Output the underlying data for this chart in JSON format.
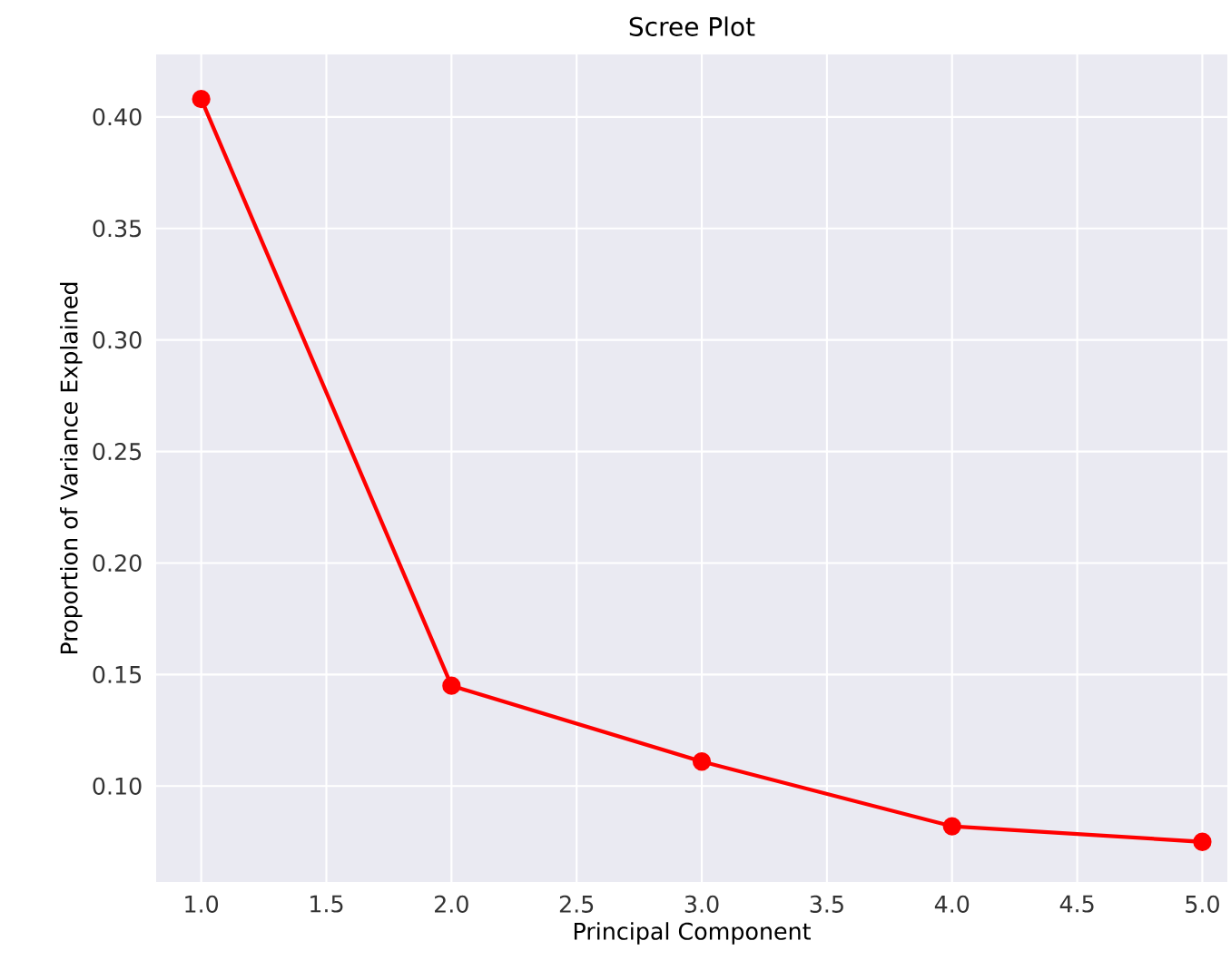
{
  "chart_data": {
    "type": "line",
    "title": "Scree Plot",
    "xlabel": "Principal Component",
    "ylabel": "Proportion of Variance Explained",
    "x": [
      1,
      2,
      3,
      4,
      5
    ],
    "series": [
      {
        "color": "#ff0000",
        "values": [
          0.408,
          0.145,
          0.111,
          0.082,
          0.075
        ]
      }
    ],
    "xlim": [
      0.82,
      5.1
    ],
    "ylim": [
      0.057,
      0.428
    ],
    "xticks": [
      {
        "value": 1,
        "label": "1.0"
      },
      {
        "value": 1.5,
        "label": "1.5"
      },
      {
        "value": 2,
        "label": "2.0"
      },
      {
        "value": 2.5,
        "label": "2.5"
      },
      {
        "value": 3,
        "label": "3.0"
      },
      {
        "value": 3.5,
        "label": "3.5"
      },
      {
        "value": 4,
        "label": "4.0"
      },
      {
        "value": 4.5,
        "label": "4.5"
      },
      {
        "value": 5,
        "label": "5.0"
      }
    ],
    "yticks": [
      {
        "value": 0.1,
        "label": "0.10"
      },
      {
        "value": 0.15,
        "label": "0.15"
      },
      {
        "value": 0.2,
        "label": "0.20"
      },
      {
        "value": 0.25,
        "label": "0.25"
      },
      {
        "value": 0.3,
        "label": "0.30"
      },
      {
        "value": 0.35,
        "label": "0.35"
      },
      {
        "value": 0.4,
        "label": "0.40"
      }
    ],
    "grid": true,
    "marker": "circle",
    "line_style": "solid"
  }
}
